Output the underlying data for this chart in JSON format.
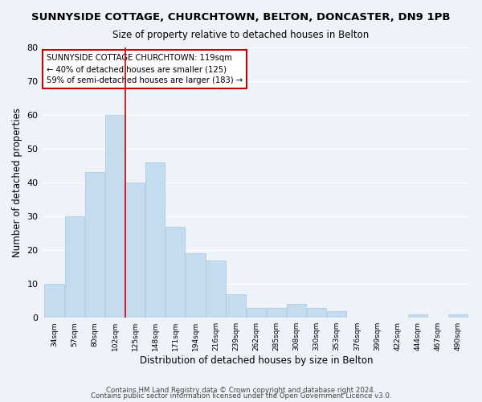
{
  "title": "SUNNYSIDE COTTAGE, CHURCHTOWN, BELTON, DONCASTER, DN9 1PB",
  "subtitle": "Size of property relative to detached houses in Belton",
  "xlabel": "Distribution of detached houses by size in Belton",
  "ylabel": "Number of detached properties",
  "bar_color": "#c5dcee",
  "bar_edge_color": "#a8c8e0",
  "background_color": "#eef2f9",
  "grid_color": "#ffffff",
  "bin_labels": [
    "34sqm",
    "57sqm",
    "80sqm",
    "102sqm",
    "125sqm",
    "148sqm",
    "171sqm",
    "194sqm",
    "216sqm",
    "239sqm",
    "262sqm",
    "285sqm",
    "308sqm",
    "330sqm",
    "353sqm",
    "376sqm",
    "399sqm",
    "422sqm",
    "444sqm",
    "467sqm",
    "490sqm"
  ],
  "bar_heights": [
    10,
    30,
    43,
    60,
    40,
    46,
    27,
    19,
    17,
    7,
    3,
    3,
    4,
    3,
    2,
    0,
    0,
    0,
    1,
    0,
    1
  ],
  "vline_color": "#cc0000",
  "annotation_title": "SUNNYSIDE COTTAGE CHURCHTOWN: 119sqm",
  "annotation_line1": "← 40% of detached houses are smaller (125)",
  "annotation_line2": "59% of semi-detached houses are larger (183) →",
  "annotation_box_color": "#ffffff",
  "annotation_box_edge": "#cc0000",
  "ylim": [
    0,
    80
  ],
  "yticks": [
    0,
    10,
    20,
    30,
    40,
    50,
    60,
    70,
    80
  ],
  "footer1": "Contains HM Land Registry data © Crown copyright and database right 2024.",
  "footer2": "Contains public sector information licensed under the Open Government Licence v3.0."
}
